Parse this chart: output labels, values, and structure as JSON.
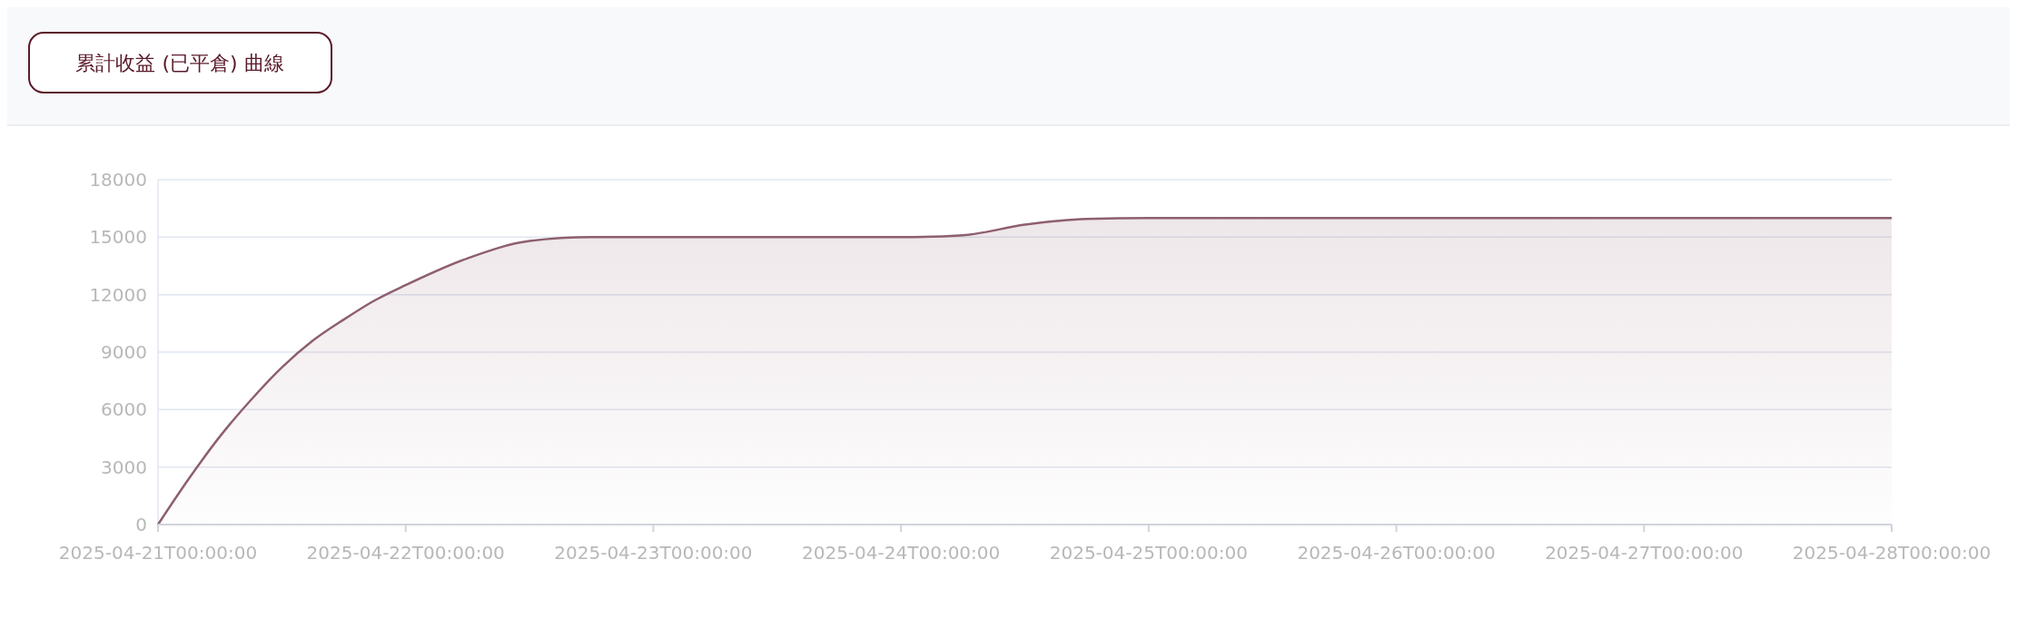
{
  "chart_data": {
    "type": "area",
    "title": "累計收益 (已平倉) 曲線",
    "x": [
      "2025-04-21T00:00",
      "2025-04-21T03:00",
      "2025-04-21T06:00",
      "2025-04-21T09:00",
      "2025-04-21T12:00",
      "2025-04-21T15:00",
      "2025-04-21T18:00",
      "2025-04-21T21:00",
      "2025-04-22T00:00",
      "2025-04-22T06:00",
      "2025-04-22T12:00",
      "2025-04-22T18:00",
      "2025-04-23T00:00",
      "2025-04-23T12:00",
      "2025-04-24T00:00",
      "2025-04-24T06:00",
      "2025-04-24T12:00",
      "2025-04-24T18:00",
      "2025-04-25T00:00",
      "2025-04-26T00:00",
      "2025-04-27T00:00",
      "2025-04-28T00:00"
    ],
    "series": [
      {
        "color": "#8e5f6e",
        "values": [
          0,
          2400,
          4600,
          6500,
          8200,
          9600,
          10700,
          11700,
          12500,
          13900,
          14800,
          15000,
          15000,
          15000,
          15000,
          15100,
          15650,
          15950,
          16000,
          16000,
          16000,
          16000
        ]
      }
    ],
    "xlim": [
      "2025-04-21T00:00",
      "2025-04-28T00:00"
    ],
    "xticks": [
      {
        "value": "2025-04-21T00:00",
        "label": "2025-04-21T00:00:00"
      },
      {
        "value": "2025-04-22T00:00",
        "label": "2025-04-22T00:00:00"
      },
      {
        "value": "2025-04-23T00:00",
        "label": "2025-04-23T00:00:00"
      },
      {
        "value": "2025-04-24T00:00",
        "label": "2025-04-24T00:00:00"
      },
      {
        "value": "2025-04-25T00:00",
        "label": "2025-04-25T00:00:00"
      },
      {
        "value": "2025-04-26T00:00",
        "label": "2025-04-26T00:00:00"
      },
      {
        "value": "2025-04-27T00:00",
        "label": "2025-04-27T00:00:00"
      },
      {
        "value": "2025-04-28T00:00",
        "label": "2025-04-28T00:00:00"
      }
    ],
    "ylim": [
      0,
      18000
    ],
    "yticks": [
      0,
      3000,
      6000,
      9000,
      12000,
      15000,
      18000
    ],
    "grid": "y",
    "marker": "none",
    "line_style": "solid"
  }
}
